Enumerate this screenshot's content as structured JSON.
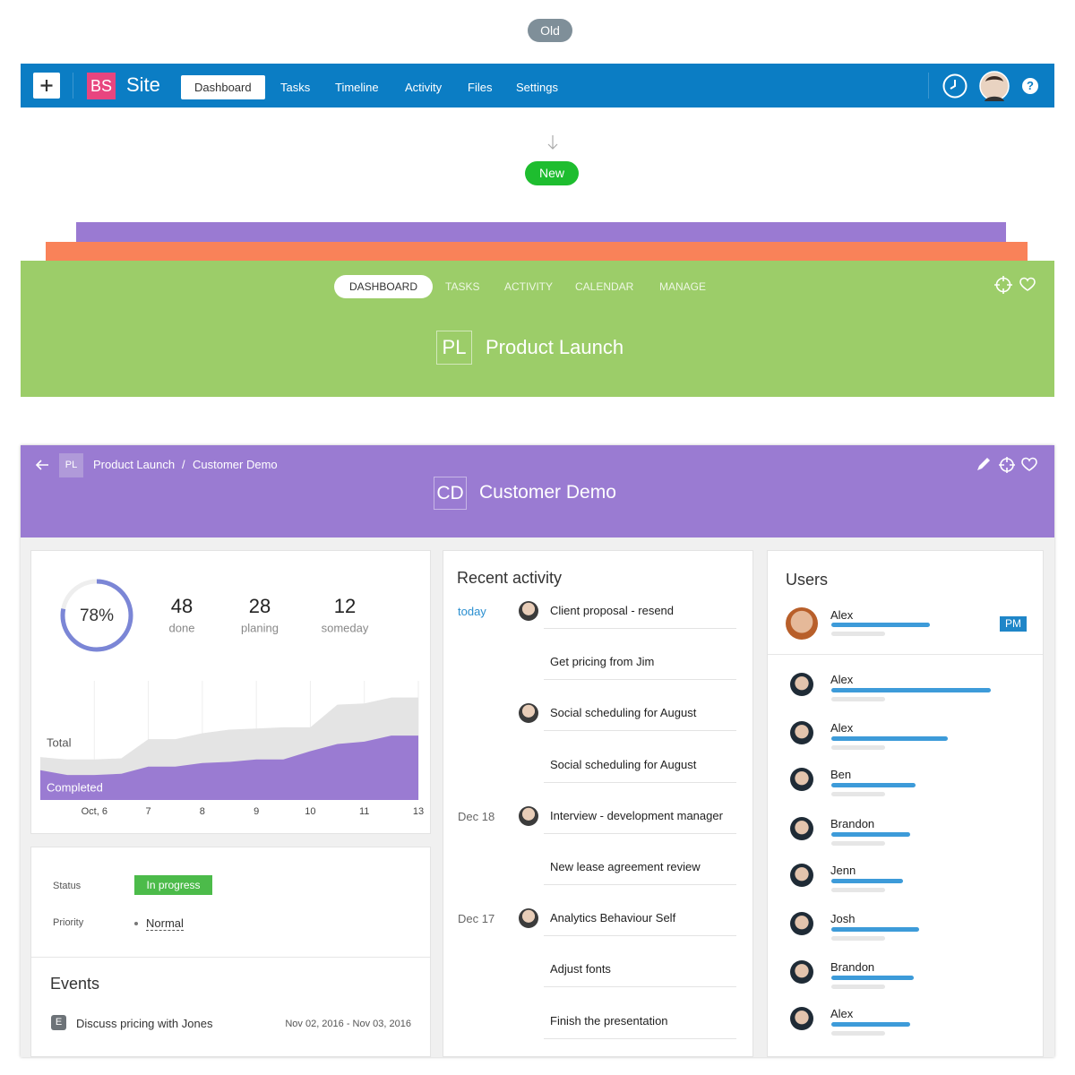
{
  "labels": {
    "old": "Old",
    "new": "New"
  },
  "old_nav": {
    "logo": "BS",
    "site": "Site",
    "tabs": [
      "Dashboard",
      "Tasks",
      "Timeline",
      "Activity",
      "Files",
      "Settings"
    ],
    "help": "?"
  },
  "project_nav": {
    "tabs": [
      "DASHBOARD",
      "TASKS",
      "ACTIVITY",
      "CALENDAR",
      "MANAGE"
    ],
    "initials": "PL",
    "title": "Product Launch"
  },
  "task_header": {
    "breadcrumb_initials": "PL",
    "breadcrumb": [
      "Product Launch",
      "Customer Demo"
    ],
    "separator": "/",
    "initials": "CD",
    "title": "Customer Demo"
  },
  "stats": {
    "donut": {
      "value": 78,
      "label": "78%"
    },
    "counts": [
      {
        "value": 48,
        "label": "done"
      },
      {
        "value": 28,
        "label": "planing"
      },
      {
        "value": 12,
        "label": "someday"
      }
    ]
  },
  "chart_data": {
    "type": "area",
    "categories": [
      null,
      null,
      "Oct, 6",
      null,
      "7",
      null,
      "8",
      null,
      "9",
      null,
      "10",
      null,
      "11",
      null,
      "13"
    ],
    "ylim": [
      0,
      100
    ],
    "series": [
      {
        "name": "Total",
        "color": "#e4e4e4",
        "values": [
          36,
          34,
          34,
          35,
          51,
          51,
          56,
          59,
          60,
          61,
          61,
          80,
          81,
          86,
          86
        ]
      },
      {
        "name": "Completed",
        "color": "#9a7bd2",
        "values": [
          25,
          21,
          21,
          22,
          28,
          28,
          31,
          32,
          34,
          34,
          41,
          47,
          49,
          54,
          54
        ]
      }
    ]
  },
  "details": {
    "status_label": "Status",
    "status": "In progress",
    "priority_label": "Priority",
    "priority": "Normal"
  },
  "events": {
    "title": "Events",
    "items": [
      {
        "icon": "E",
        "text": "Discuss pricing with Jones",
        "dates": "Nov 02, 2016 - Nov 03, 2016"
      }
    ]
  },
  "activity": {
    "title": "Recent activity",
    "items": [
      {
        "date": "today",
        "text": "Client proposal - resend"
      },
      {
        "text": "Get pricing from Jim"
      },
      {
        "text": "Social scheduling for August"
      },
      {
        "text": "Social scheduling for August"
      },
      {
        "date": "Dec 18",
        "text": "Interview - development manager"
      },
      {
        "text": "New lease agreement review"
      },
      {
        "date": "Dec 17",
        "text": "Analytics Behaviour Self"
      },
      {
        "text": "Adjust fonts"
      },
      {
        "text": "Finish the presentation"
      }
    ]
  },
  "users": {
    "title": "Users",
    "owner": {
      "name": "Alex",
      "role": "PM",
      "progress": 55
    },
    "items": [
      {
        "name": "Alex",
        "progress": 89
      },
      {
        "name": "Alex",
        "progress": 65
      },
      {
        "name": "Ben",
        "progress": 47
      },
      {
        "name": "Brandon",
        "progress": 44
      },
      {
        "name": "Jenn",
        "progress": 40
      },
      {
        "name": "Josh",
        "progress": 49
      },
      {
        "name": "Brandon",
        "progress": 46
      },
      {
        "name": "Alex",
        "progress": 44
      }
    ]
  }
}
